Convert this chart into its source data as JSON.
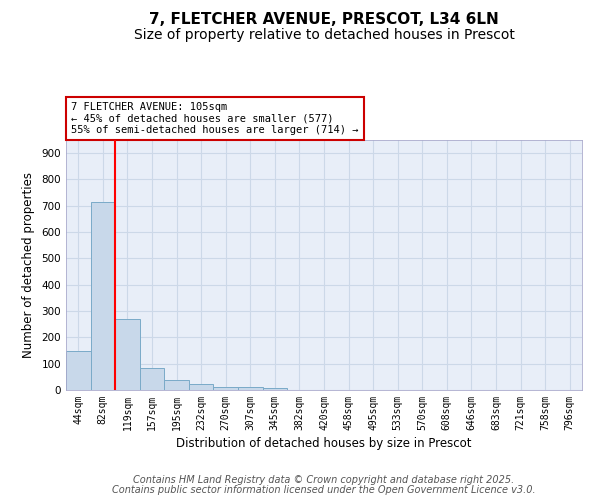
{
  "title_line1": "7, FLETCHER AVENUE, PRESCOT, L34 6LN",
  "title_line2": "Size of property relative to detached houses in Prescot",
  "xlabel": "Distribution of detached houses by size in Prescot",
  "ylabel": "Number of detached properties",
  "categories": [
    "44sqm",
    "82sqm",
    "119sqm",
    "157sqm",
    "195sqm",
    "232sqm",
    "270sqm",
    "307sqm",
    "345sqm",
    "382sqm",
    "420sqm",
    "458sqm",
    "495sqm",
    "533sqm",
    "570sqm",
    "608sqm",
    "646sqm",
    "683sqm",
    "721sqm",
    "758sqm",
    "796sqm"
  ],
  "values": [
    148,
    714,
    271,
    85,
    37,
    21,
    13,
    10,
    9,
    0,
    0,
    0,
    0,
    0,
    0,
    0,
    0,
    0,
    0,
    0,
    0
  ],
  "bar_color": "#c8d8ea",
  "bar_edge_color": "#7aaac8",
  "grid_color": "#ccd8e8",
  "bg_color": "#e8eef8",
  "red_line_x": 1.5,
  "annotation_text": "7 FLETCHER AVENUE: 105sqm\n← 45% of detached houses are smaller (577)\n55% of semi-detached houses are larger (714) →",
  "annotation_box_color": "#ffffff",
  "annotation_box_edge": "#cc0000",
  "ylim": [
    0,
    950
  ],
  "yticks": [
    0,
    100,
    200,
    300,
    400,
    500,
    600,
    700,
    800,
    900
  ],
  "footer_line1": "Contains HM Land Registry data © Crown copyright and database right 2025.",
  "footer_line2": "Contains public sector information licensed under the Open Government Licence v3.0.",
  "title_fontsize": 11,
  "subtitle_fontsize": 10,
  "tick_fontsize": 7,
  "label_fontsize": 8.5,
  "footer_fontsize": 7
}
